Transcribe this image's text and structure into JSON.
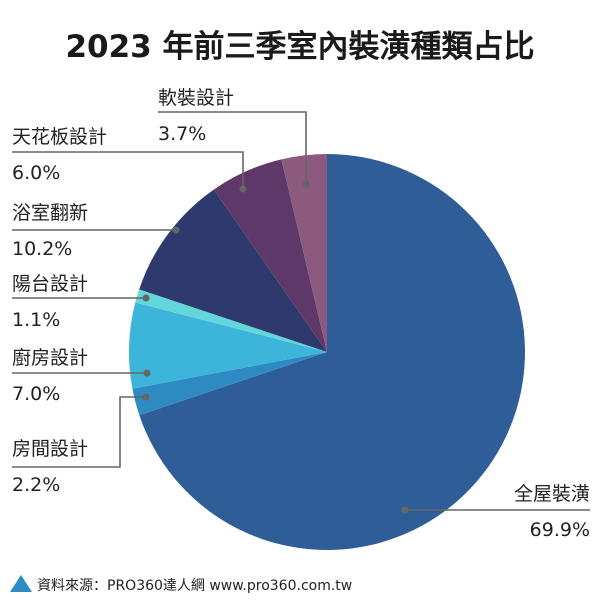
{
  "chart_data": {
    "type": "pie",
    "title": "2023 年前三季室內裝潢種類占比",
    "slices": [
      {
        "label": "全屋裝潢",
        "value": 69.9,
        "value_text": "69.9%",
        "color": "#2E5D98"
      },
      {
        "label": "房間設計",
        "value": 2.2,
        "value_text": "2.2%",
        "color": "#2E8AC2"
      },
      {
        "label": "廚房設計",
        "value": 7.0,
        "value_text": "7.0%",
        "color": "#3DB4D9"
      },
      {
        "label": "陽台設計",
        "value": 1.1,
        "value_text": "1.1%",
        "color": "#63D6DB"
      },
      {
        "label": "浴室翻新",
        "value": 10.2,
        "value_text": "10.2%",
        "color": "#2E3A6E"
      },
      {
        "label": "天花板設計",
        "value": 6.0,
        "value_text": "6.0%",
        "color": "#5D3868"
      },
      {
        "label": "軟裝設計",
        "value": 3.7,
        "value_text": "3.7%",
        "color": "#8B5A7E"
      }
    ],
    "start_angle": "12 o'clock",
    "direction": "clockwise",
    "legend": "none"
  },
  "source": {
    "text": "資料來源：PRO360達人網  www.pro360.com.tw",
    "icon": "triangle-icon",
    "icon_color": "#2E8AC2"
  }
}
